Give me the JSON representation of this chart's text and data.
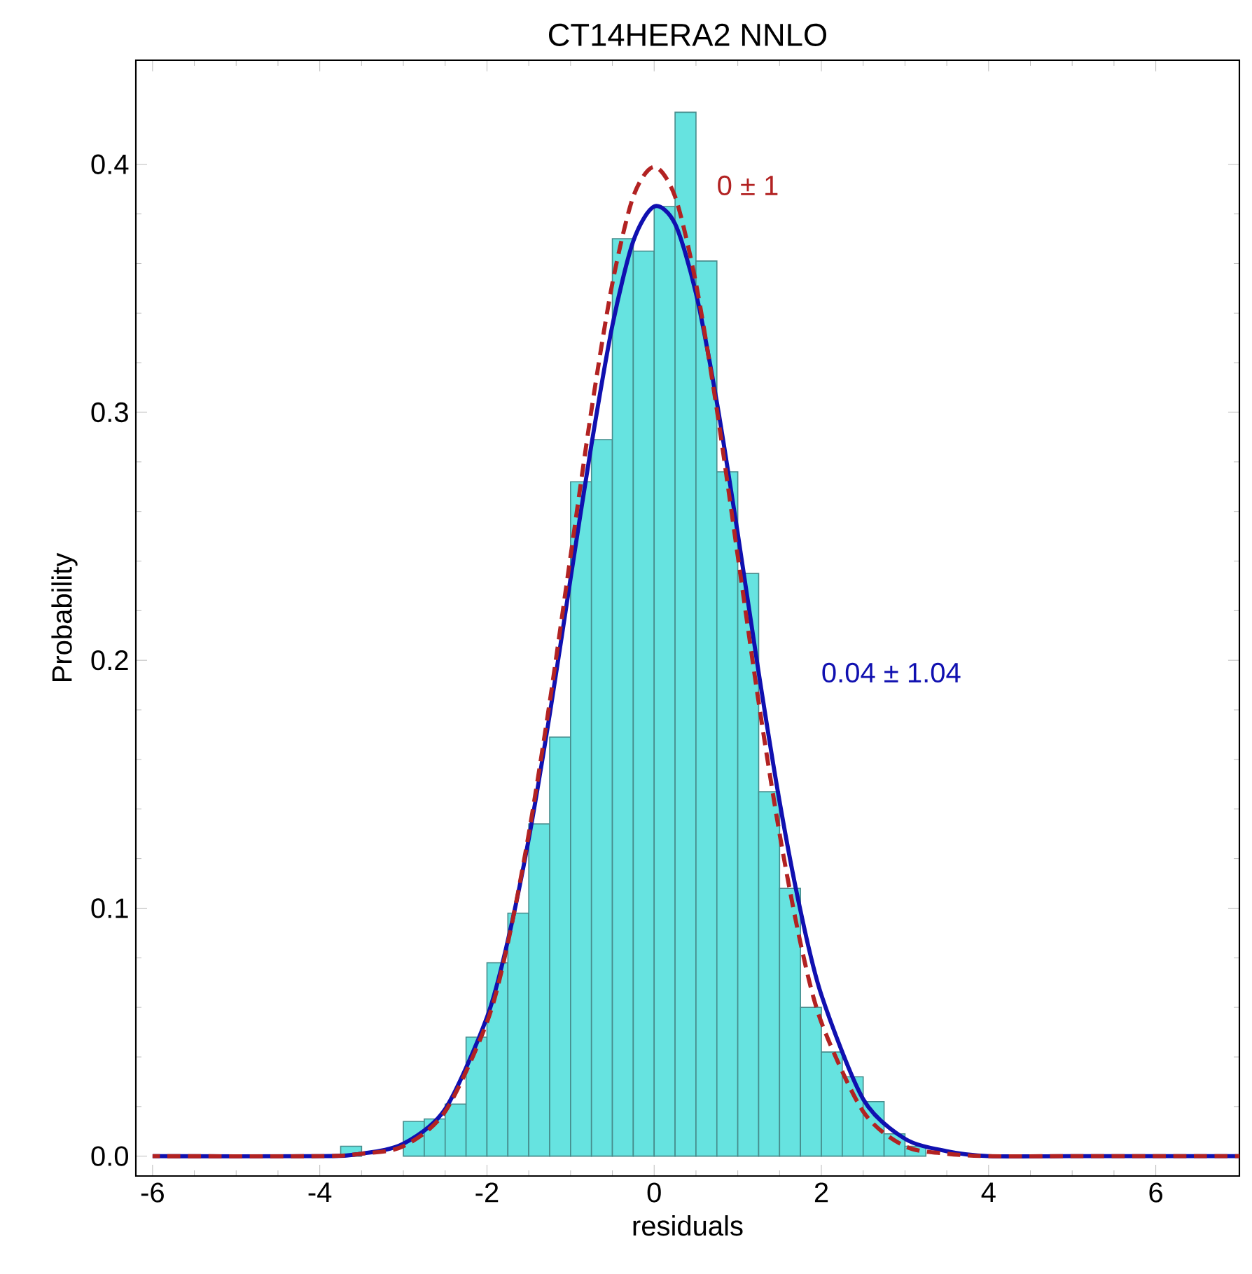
{
  "chart_data": {
    "type": "histogram",
    "title": "CT14HERA2 NNLO",
    "xlabel": "residuals",
    "ylabel": "Probability",
    "bins": [
      -3.75,
      -3.5,
      -3.25,
      -3.0,
      -2.75,
      -2.5,
      -2.25,
      -2.0,
      -1.75,
      -1.5,
      -1.25,
      -1.0,
      -0.75,
      -0.5,
      -0.25,
      0.0,
      0.25,
      0.5,
      0.75,
      1.0,
      1.25,
      1.5,
      1.75,
      2.0,
      2.25,
      2.5,
      2.75,
      3.0,
      3.25
    ],
    "values": [
      0.004,
      0,
      0,
      0.014,
      0.015,
      0.021,
      0.048,
      0.078,
      0.098,
      0.134,
      0.169,
      0.272,
      0.289,
      0.37,
      0.365,
      0.383,
      0.421,
      0.361,
      0.276,
      0.235,
      0.147,
      0.108,
      0.06,
      0.042,
      0.032,
      0.022,
      0.009,
      0.004
    ],
    "color": "#66e3e0",
    "series": [
      {
        "type": "line",
        "name": "0 ± 1",
        "color": "#b22222",
        "line_style": "dashed",
        "x": [
          -6,
          -4,
          -3.5,
          -3,
          -2.5,
          -2,
          -1.75,
          -1.5,
          -1.25,
          -1,
          -0.75,
          -0.5,
          -0.25,
          0,
          0.25,
          0.5,
          0.75,
          1,
          1.25,
          1.5,
          1.75,
          2,
          2.5,
          3,
          3.5,
          4,
          5,
          7
        ],
        "values": [
          0,
          0,
          0.001,
          0.004,
          0.018,
          0.054,
          0.086,
          0.13,
          0.183,
          0.242,
          0.301,
          0.352,
          0.387,
          0.399,
          0.387,
          0.352,
          0.301,
          0.242,
          0.183,
          0.13,
          0.086,
          0.054,
          0.018,
          0.004,
          0.001,
          0,
          0,
          0
        ]
      },
      {
        "type": "line",
        "name": "0.04 ± 1.04",
        "color": "#1010b0",
        "line_style": "solid",
        "x": [
          -6,
          -4,
          -3.5,
          -3,
          -2.5,
          -2,
          -1.75,
          -1.5,
          -1.25,
          -1,
          -0.75,
          -0.5,
          -0.25,
          0,
          0.25,
          0.5,
          0.75,
          1,
          1.25,
          1.5,
          1.75,
          2,
          2.5,
          3,
          3.5,
          4,
          5,
          7
        ],
        "values": [
          0,
          0,
          0.001,
          0.005,
          0.019,
          0.056,
          0.087,
          0.128,
          0.178,
          0.233,
          0.287,
          0.335,
          0.369,
          0.383,
          0.376,
          0.348,
          0.304,
          0.251,
          0.195,
          0.143,
          0.099,
          0.065,
          0.023,
          0.007,
          0.002,
          0,
          0,
          0
        ]
      }
    ],
    "xlim": [
      -6.2,
      7
    ],
    "ylim": [
      -0.008,
      0.442
    ],
    "xticks": [
      -6,
      -4,
      -2,
      0,
      2,
      4,
      6
    ],
    "yticks": [
      {
        "value": 0,
        "label": "0.0"
      },
      {
        "value": 0.1,
        "label": "0.1"
      },
      {
        "value": 0.2,
        "label": "0.2"
      },
      {
        "value": 0.3,
        "label": "0.3"
      },
      {
        "value": 0.4,
        "label": "0.4"
      }
    ],
    "grid": false
  }
}
